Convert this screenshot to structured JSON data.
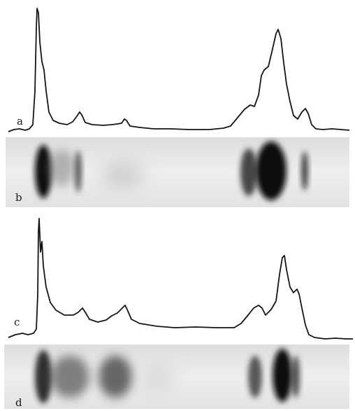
{
  "panels": [
    {
      "id": "a",
      "label": "a",
      "kind": "densitometer-trace"
    },
    {
      "id": "b",
      "label": "b",
      "kind": "gel-strip"
    },
    {
      "id": "c",
      "label": "c",
      "kind": "densitometer-trace"
    },
    {
      "id": "d",
      "label": "d",
      "kind": "gel-strip"
    }
  ],
  "colors": {
    "background": "#ffffff",
    "trace": "#141414",
    "strip_background": "#e9e9e9",
    "band": "#0d0d0d"
  }
}
